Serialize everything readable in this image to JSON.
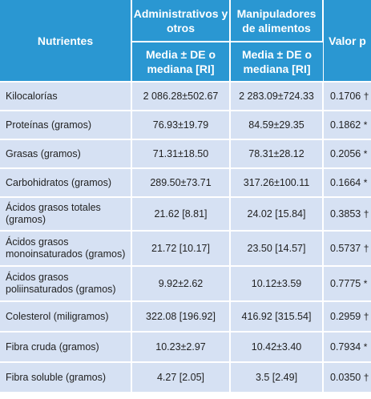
{
  "table": {
    "headers": {
      "nutrients": "Nutrientes",
      "group1": "Administrativos y otros",
      "group2": "Manipuladores de alimentos",
      "pvalue": "Valor p",
      "stat1": "Media ± DE o mediana [RI]",
      "stat2": "Media ± DE o mediana [RI]"
    },
    "rows": [
      {
        "name": "Kilocalorías",
        "g1": "2 086.28±502.67",
        "g2": "2 283.09±724.33",
        "p": "0.1706",
        "mark": "†"
      },
      {
        "name": "Proteínas (gramos)",
        "g1": "76.93±19.79",
        "g2": "84.59±29.35",
        "p": "0.1862",
        "mark": "*"
      },
      {
        "name": "Grasas (gramos)",
        "g1": "71.31±18.50",
        "g2": "78.31±28.12",
        "p": "0.2056",
        "mark": "*"
      },
      {
        "name": "Carbohidratos (gramos)",
        "g1": "289.50±73.71",
        "g2": "317.26±100.11",
        "p": "0.1664",
        "mark": "*"
      },
      {
        "name": "Ácidos grasos totales (gramos)",
        "g1": "21.62 [8.81]",
        "g2": "24.02 [15.84]",
        "p": "0.3853",
        "mark": "†"
      },
      {
        "name": "Ácidos grasos monoinsaturados (gramos)",
        "g1": "21.72 [10.17]",
        "g2": "23.50 [14.57]",
        "p": "0.5737",
        "mark": "†"
      },
      {
        "name": "Ácidos grasos poliinsaturados (gramos)",
        "g1": "9.92±2.62",
        "g2": "10.12±3.59",
        "p": "0.7775",
        "mark": "*"
      },
      {
        "name": "Colesterol (miligramos)",
        "g1": "322.08 [196.92]",
        "g2": "416.92 [315.54]",
        "p": "0.2959",
        "mark": "†"
      },
      {
        "name": "Fibra cruda (gramos)",
        "g1": "10.23±2.97",
        "g2": "10.42±3.40",
        "p": "0.7934",
        "mark": "*"
      },
      {
        "name": "Fibra soluble (gramos)",
        "g1": "4.27 [2.05]",
        "g2": "3.5 [2.49]",
        "p": "0.0350",
        "mark": "†"
      }
    ]
  },
  "colors": {
    "header_bg": "#2a97d2",
    "row_bg": "#d6e1f3",
    "grid": "#ffffff"
  }
}
